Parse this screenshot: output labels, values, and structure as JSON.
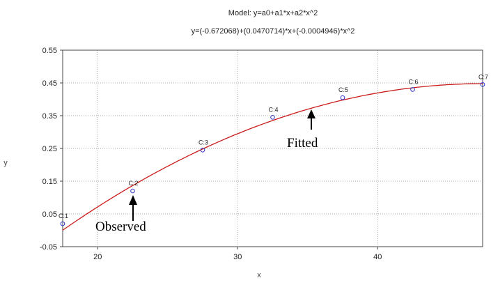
{
  "chart_data": {
    "type": "scatter",
    "title": "Model: y=a0+a1*x+a2*x^2",
    "subtitle": "y=(-0.672068)+(0.0470714)*x+(-0.0004946)*x^2",
    "xlabel": "x",
    "ylabel": "y",
    "xlim": [
      17.5,
      47.5
    ],
    "ylim": [
      -0.05,
      0.55
    ],
    "x_ticks": [
      20,
      30,
      40
    ],
    "y_ticks": [
      -0.05,
      0.05,
      0.15,
      0.25,
      0.35,
      0.45,
      0.55
    ],
    "y_tick_labels": [
      "-0.05",
      "0.05",
      "0.15",
      "0.25",
      "0.35",
      "0.45",
      "0.55"
    ],
    "grid": true,
    "coefficients": {
      "a0": -0.672068,
      "a1": 0.0470714,
      "a2": -0.0004946
    },
    "observed": {
      "x": [
        17.5,
        22.5,
        27.5,
        32.5,
        37.5,
        42.5,
        47.5
      ],
      "y": [
        0.02,
        0.12,
        0.245,
        0.345,
        0.405,
        0.43,
        0.445
      ],
      "labels": [
        "C:1",
        "C:2",
        "C:3",
        "C:4",
        "C:5",
        "C:6",
        "C:7"
      ]
    },
    "annotations": [
      {
        "text": "Fitted",
        "x": 35.3,
        "y": 0.37
      },
      {
        "text": "Observed",
        "x": 22.5,
        "y": 0.11
      }
    ],
    "colors": {
      "fit_line": "#cc1a1a",
      "points": "#3333cc",
      "grid": "#aaaaaa",
      "frame": "#444444"
    }
  }
}
